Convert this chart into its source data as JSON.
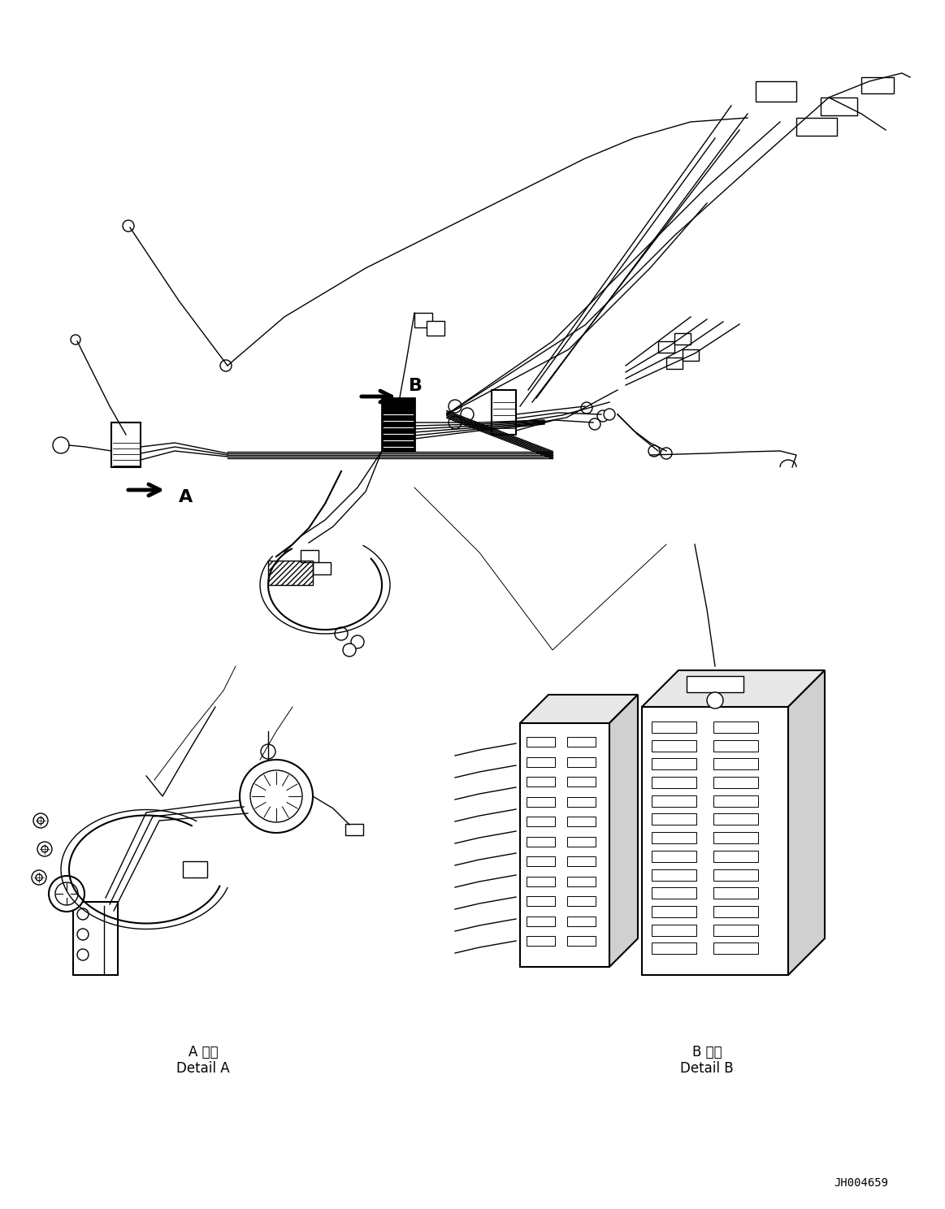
{
  "background_color": "#ffffff",
  "line_color": "#000000",
  "figure_width": 11.63,
  "figure_height": 14.88,
  "dpi": 100,
  "label_A": "A",
  "label_B": "B",
  "detail_A_jp": "A 詳細",
  "detail_A_en": "Detail A",
  "detail_B_jp": "B 詳細",
  "detail_B_en": "Detail B",
  "part_number": "JH004659"
}
